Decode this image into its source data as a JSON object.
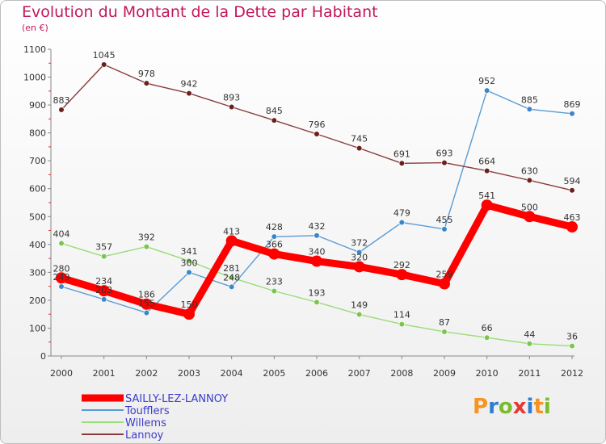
{
  "title": "Evolution du Montant de la Dette par Habitant",
  "subtitle": "(en €)",
  "logo": {
    "text": "Proxiti",
    "letter_colors": [
      "#f7931e",
      "#2e7dd1",
      "#7cbb2a",
      "#e53935",
      "#2e7dd1",
      "#f7931e",
      "#7cbb2a"
    ]
  },
  "chart_data": {
    "type": "line",
    "x": [
      2000,
      2001,
      2002,
      2003,
      2004,
      2005,
      2006,
      2007,
      2008,
      2009,
      2010,
      2011,
      2012
    ],
    "ylim": [
      0,
      1100
    ],
    "yticks": [
      0,
      100,
      200,
      300,
      400,
      500,
      600,
      700,
      800,
      900,
      1000,
      1100
    ],
    "grid": false,
    "legend_position": "bottom-left",
    "series": [
      {
        "name": "SAILLY-LEZ-LANNOY",
        "color": "#ff0000",
        "highlight": true,
        "values": [
          280,
          234,
          186,
          150,
          413,
          366,
          340,
          320,
          292,
          259,
          541,
          500,
          463
        ],
        "labels": [
          "280",
          "234",
          "186",
          "150",
          "413",
          "366",
          "340",
          "320",
          "292",
          "259",
          "541",
          "500",
          "463"
        ]
      },
      {
        "name": "Toufflers",
        "color": "#5b9bd5",
        "marker": "#3a86c8",
        "values": [
          249,
          203,
          155,
          300,
          248,
          428,
          432,
          372,
          479,
          455,
          952,
          885,
          869
        ],
        "labels": [
          "249",
          "203",
          "155",
          "300",
          "248",
          "428",
          "432",
          "372",
          "479",
          "455",
          "952",
          "885",
          "869"
        ]
      },
      {
        "name": "Willems",
        "color": "#99dd77",
        "marker": "#7cc452",
        "values": [
          404,
          357,
          392,
          341,
          281,
          233,
          193,
          149,
          114,
          87,
          66,
          44,
          36
        ],
        "labels": [
          "404",
          "357",
          "392",
          "341",
          "281",
          "233",
          "193",
          "149",
          "114",
          "87",
          "66",
          "44",
          "36"
        ]
      },
      {
        "name": "Lannoy",
        "color": "#8b3a3a",
        "marker": "#6b1f1f",
        "values": [
          883,
          1045,
          978,
          942,
          893,
          845,
          796,
          745,
          691,
          693,
          664,
          630,
          594
        ],
        "labels": [
          "883",
          "1045",
          "978",
          "942",
          "893",
          "845",
          "796",
          "745",
          "691",
          "693",
          "664",
          "630",
          "594"
        ]
      }
    ]
  }
}
